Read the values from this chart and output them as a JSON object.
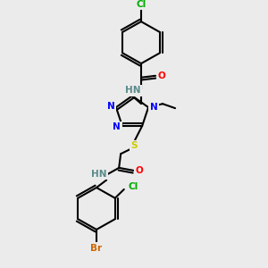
{
  "background_color": "#ebebeb",
  "atom_colors": {
    "N": "#0000ff",
    "O": "#ff0000",
    "S": "#cccc00",
    "Cl_top": "#00aa00",
    "Cl_bot": "#00aa00",
    "Br": "#cc6600",
    "H": "#5a8a8a"
  },
  "bond_lw": 1.5,
  "font_size": 7.5
}
